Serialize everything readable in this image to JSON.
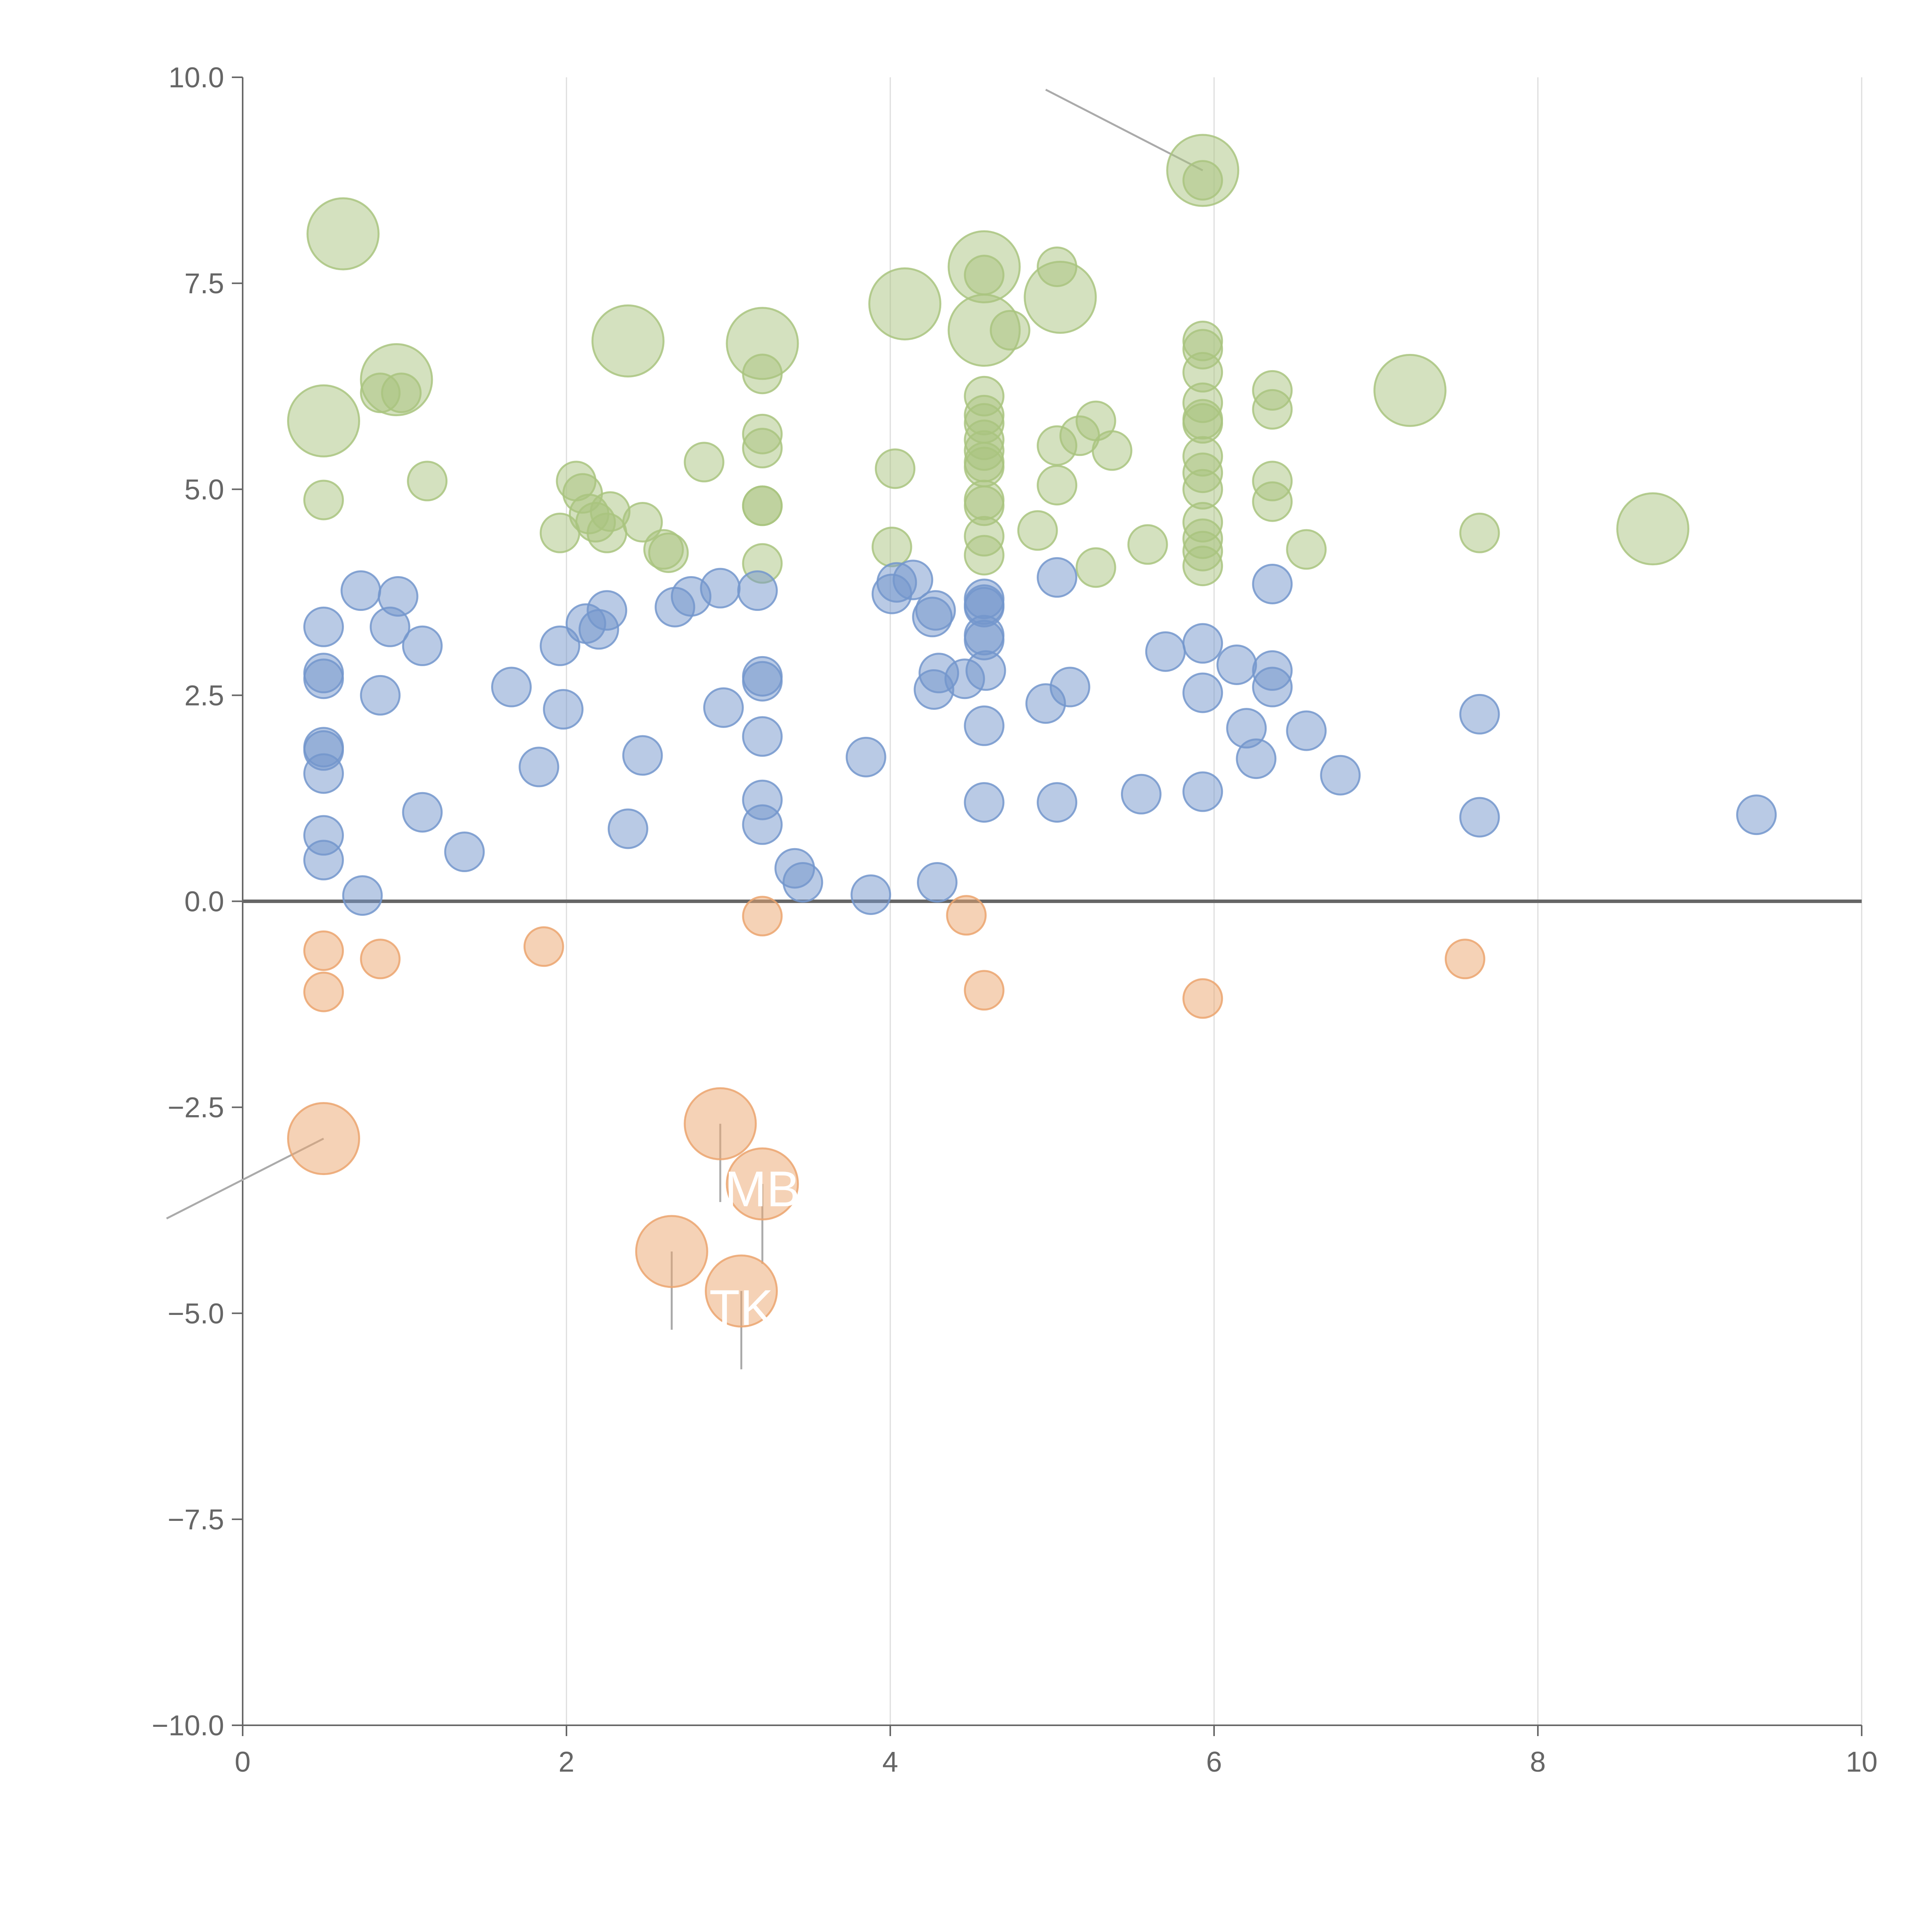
{
  "chart_data": {
    "type": "scatter",
    "title": "",
    "xlabel": "",
    "ylabel": "",
    "xlim": [
      0,
      10
    ],
    "ylim": [
      -10,
      10
    ],
    "x_ticks": [
      "0",
      "2",
      "4",
      "6",
      "8",
      "10"
    ],
    "y_ticks": [
      "−10.0",
      "−7.5",
      "−5.0",
      "−2.5",
      "0.0",
      "2.5",
      "5.0",
      "7.5",
      "10.0"
    ],
    "x_tick_values": [
      0,
      2,
      4,
      6,
      8,
      10
    ],
    "y_tick_values": [
      -10,
      -7.5,
      -5,
      -2.5,
      0,
      2.5,
      5,
      7.5,
      10
    ],
    "vertical_gridlines": true,
    "horizontal_gridlines": false,
    "zero_line": true,
    "bubble_size_legend": "none",
    "colors": {
      "high": "#a9c47f",
      "mid": "#7396cc",
      "negative": "#eba56e",
      "axis": "#666666",
      "grid": "#dddddd",
      "leader": "#aaaaaa"
    },
    "series": [
      {
        "color_key": "high",
        "points": [
          {
            "x": 5.93,
            "y": 8.87,
            "size": 2.4
          },
          {
            "x": 5.93,
            "y": 8.75,
            "size": 1
          },
          {
            "x": 0.62,
            "y": 8.1,
            "size": 2.4
          },
          {
            "x": 4.58,
            "y": 7.7,
            "size": 2.4
          },
          {
            "x": 4.58,
            "y": 7.6,
            "size": 1
          },
          {
            "x": 5.03,
            "y": 7.7,
            "size": 1
          },
          {
            "x": 4.09,
            "y": 7.25,
            "size": 2.4
          },
          {
            "x": 5.05,
            "y": 7.33,
            "size": 2.4
          },
          {
            "x": 4.58,
            "y": 6.93,
            "size": 2.4
          },
          {
            "x": 4.74,
            "y": 6.93,
            "size": 1
          },
          {
            "x": 2.38,
            "y": 6.8,
            "size": 2.4
          },
          {
            "x": 3.21,
            "y": 6.77,
            "size": 2.4
          },
          {
            "x": 5.93,
            "y": 6.8,
            "size": 1
          },
          {
            "x": 5.93,
            "y": 6.7,
            "size": 1
          },
          {
            "x": 3.21,
            "y": 6.4,
            "size": 1
          },
          {
            "x": 5.93,
            "y": 6.42,
            "size": 1
          },
          {
            "x": 0.95,
            "y": 6.33,
            "size": 2.4
          },
          {
            "x": 0.85,
            "y": 6.17,
            "size": 1
          },
          {
            "x": 0.98,
            "y": 6.17,
            "size": 1
          },
          {
            "x": 7.21,
            "y": 6.2,
            "size": 2.4
          },
          {
            "x": 6.36,
            "y": 6.2,
            "size": 1
          },
          {
            "x": 4.58,
            "y": 6.13,
            "size": 1
          },
          {
            "x": 5.93,
            "y": 6.05,
            "size": 1
          },
          {
            "x": 6.36,
            "y": 5.97,
            "size": 1
          },
          {
            "x": 4.58,
            "y": 5.9,
            "size": 1
          },
          {
            "x": 4.58,
            "y": 5.8,
            "size": 1
          },
          {
            "x": 0.5,
            "y": 5.83,
            "size": 2.4
          },
          {
            "x": 5.27,
            "y": 5.83,
            "size": 1
          },
          {
            "x": 5.93,
            "y": 5.85,
            "size": 1
          },
          {
            "x": 5.93,
            "y": 5.8,
            "size": 1
          },
          {
            "x": 3.21,
            "y": 5.67,
            "size": 1
          },
          {
            "x": 4.58,
            "y": 5.6,
            "size": 1
          },
          {
            "x": 5.17,
            "y": 5.65,
            "size": 1
          },
          {
            "x": 5.03,
            "y": 5.53,
            "size": 1
          },
          {
            "x": 3.21,
            "y": 5.5,
            "size": 1
          },
          {
            "x": 4.58,
            "y": 5.47,
            "size": 1
          },
          {
            "x": 5.37,
            "y": 5.47,
            "size": 1
          },
          {
            "x": 5.93,
            "y": 5.4,
            "size": 1
          },
          {
            "x": 2.85,
            "y": 5.33,
            "size": 1
          },
          {
            "x": 4.58,
            "y": 5.33,
            "size": 1
          },
          {
            "x": 4.58,
            "y": 5.27,
            "size": 1
          },
          {
            "x": 4.03,
            "y": 5.25,
            "size": 1
          },
          {
            "x": 5.93,
            "y": 5.2,
            "size": 1
          },
          {
            "x": 1.14,
            "y": 5.1,
            "size": 1
          },
          {
            "x": 2.06,
            "y": 5.1,
            "size": 1
          },
          {
            "x": 6.36,
            "y": 5.1,
            "size": 1
          },
          {
            "x": 5.03,
            "y": 5.05,
            "size": 1
          },
          {
            "x": 5.93,
            "y": 5.0,
            "size": 1
          },
          {
            "x": 2.1,
            "y": 4.95,
            "size": 1
          },
          {
            "x": 0.5,
            "y": 4.87,
            "size": 1
          },
          {
            "x": 4.58,
            "y": 4.87,
            "size": 1
          },
          {
            "x": 6.36,
            "y": 4.85,
            "size": 1
          },
          {
            "x": 3.21,
            "y": 4.8,
            "size": 1
          },
          {
            "x": 3.21,
            "y": 4.8,
            "size": 1
          },
          {
            "x": 4.58,
            "y": 4.8,
            "size": 1
          },
          {
            "x": 2.27,
            "y": 4.73,
            "size": 1
          },
          {
            "x": 2.14,
            "y": 4.7,
            "size": 1
          },
          {
            "x": 2.18,
            "y": 4.6,
            "size": 1
          },
          {
            "x": 2.47,
            "y": 4.6,
            "size": 1
          },
          {
            "x": 5.93,
            "y": 4.6,
            "size": 1
          },
          {
            "x": 8.71,
            "y": 4.52,
            "size": 2.4
          },
          {
            "x": 1.96,
            "y": 4.47,
            "size": 1
          },
          {
            "x": 2.25,
            "y": 4.47,
            "size": 1
          },
          {
            "x": 4.91,
            "y": 4.5,
            "size": 1
          },
          {
            "x": 7.64,
            "y": 4.47,
            "size": 1
          },
          {
            "x": 4.58,
            "y": 4.43,
            "size": 1
          },
          {
            "x": 5.93,
            "y": 4.4,
            "size": 1
          },
          {
            "x": 5.59,
            "y": 4.33,
            "size": 1
          },
          {
            "x": 4.01,
            "y": 4.3,
            "size": 1
          },
          {
            "x": 2.6,
            "y": 4.27,
            "size": 1
          },
          {
            "x": 6.57,
            "y": 4.27,
            "size": 1
          },
          {
            "x": 2.63,
            "y": 4.23,
            "size": 1
          },
          {
            "x": 4.58,
            "y": 4.2,
            "size": 1
          },
          {
            "x": 5.93,
            "y": 4.25,
            "size": 1
          },
          {
            "x": 3.21,
            "y": 4.1,
            "size": 1
          },
          {
            "x": 5.27,
            "y": 4.05,
            "size": 1
          },
          {
            "x": 5.93,
            "y": 4.07,
            "size": 1
          }
        ]
      },
      {
        "color_key": "mid",
        "points": [
          {
            "x": 0.5,
            "y": 3.33,
            "size": 1
          },
          {
            "x": 0.73,
            "y": 3.77,
            "size": 1
          },
          {
            "x": 0.96,
            "y": 3.7,
            "size": 1
          },
          {
            "x": 0.91,
            "y": 3.33,
            "size": 1
          },
          {
            "x": 1.11,
            "y": 3.1,
            "size": 1
          },
          {
            "x": 0.5,
            "y": 2.77,
            "size": 1
          },
          {
            "x": 0.5,
            "y": 2.7,
            "size": 1
          },
          {
            "x": 0.85,
            "y": 2.5,
            "size": 1
          },
          {
            "x": 1.66,
            "y": 2.6,
            "size": 1
          },
          {
            "x": 1.96,
            "y": 3.1,
            "size": 1
          },
          {
            "x": 2.12,
            "y": 3.37,
            "size": 1
          },
          {
            "x": 2.2,
            "y": 3.3,
            "size": 1
          },
          {
            "x": 2.25,
            "y": 3.53,
            "size": 1
          },
          {
            "x": 2.67,
            "y": 3.57,
            "size": 1
          },
          {
            "x": 2.77,
            "y": 3.7,
            "size": 1
          },
          {
            "x": 2.95,
            "y": 3.8,
            "size": 1
          },
          {
            "x": 3.18,
            "y": 3.77,
            "size": 1
          },
          {
            "x": 3.21,
            "y": 2.73,
            "size": 1
          },
          {
            "x": 3.21,
            "y": 2.67,
            "size": 1
          },
          {
            "x": 2.97,
            "y": 2.35,
            "size": 1
          },
          {
            "x": 1.98,
            "y": 2.33,
            "size": 1
          },
          {
            "x": 0.5,
            "y": 1.87,
            "size": 1
          },
          {
            "x": 0.5,
            "y": 1.83,
            "size": 1
          },
          {
            "x": 0.5,
            "y": 1.55,
            "size": 1
          },
          {
            "x": 1.83,
            "y": 1.63,
            "size": 1
          },
          {
            "x": 2.47,
            "y": 1.77,
            "size": 1
          },
          {
            "x": 3.21,
            "y": 2.0,
            "size": 1
          },
          {
            "x": 1.11,
            "y": 1.08,
            "size": 1
          },
          {
            "x": 0.5,
            "y": 0.8,
            "size": 1
          },
          {
            "x": 1.37,
            "y": 0.6,
            "size": 1
          },
          {
            "x": 2.38,
            "y": 0.88,
            "size": 1
          },
          {
            "x": 3.21,
            "y": 1.23,
            "size": 1
          },
          {
            "x": 3.21,
            "y": 0.93,
            "size": 1
          },
          {
            "x": 0.5,
            "y": 0.5,
            "size": 1
          },
          {
            "x": 0.74,
            "y": 0.07,
            "size": 1
          },
          {
            "x": 3.41,
            "y": 0.4,
            "size": 1
          },
          {
            "x": 3.46,
            "y": 0.23,
            "size": 1
          },
          {
            "x": 3.85,
            "y": 1.75,
            "size": 1
          },
          {
            "x": 3.88,
            "y": 0.08,
            "size": 1
          },
          {
            "x": 4.01,
            "y": 3.73,
            "size": 1
          },
          {
            "x": 4.04,
            "y": 3.87,
            "size": 1
          },
          {
            "x": 4.14,
            "y": 3.9,
            "size": 1
          },
          {
            "x": 4.28,
            "y": 3.53,
            "size": 1
          },
          {
            "x": 4.26,
            "y": 3.45,
            "size": 1
          },
          {
            "x": 4.3,
            "y": 2.77,
            "size": 1
          },
          {
            "x": 4.27,
            "y": 2.57,
            "size": 1
          },
          {
            "x": 4.46,
            "y": 2.7,
            "size": 1
          },
          {
            "x": 4.58,
            "y": 3.67,
            "size": 1
          },
          {
            "x": 4.58,
            "y": 3.6,
            "size": 1
          },
          {
            "x": 4.58,
            "y": 3.57,
            "size": 1
          },
          {
            "x": 4.58,
            "y": 3.23,
            "size": 1
          },
          {
            "x": 4.58,
            "y": 3.17,
            "size": 1
          },
          {
            "x": 4.59,
            "y": 2.8,
            "size": 1
          },
          {
            "x": 4.58,
            "y": 2.13,
            "size": 1
          },
          {
            "x": 4.58,
            "y": 1.2,
            "size": 1
          },
          {
            "x": 4.29,
            "y": 0.23,
            "size": 1
          },
          {
            "x": 5.03,
            "y": 3.93,
            "size": 1
          },
          {
            "x": 4.96,
            "y": 2.4,
            "size": 1
          },
          {
            "x": 5.11,
            "y": 2.6,
            "size": 1
          },
          {
            "x": 5.03,
            "y": 1.2,
            "size": 1
          },
          {
            "x": 5.55,
            "y": 1.3,
            "size": 1
          },
          {
            "x": 5.7,
            "y": 3.03,
            "size": 1
          },
          {
            "x": 5.93,
            "y": 3.13,
            "size": 1
          },
          {
            "x": 5.93,
            "y": 2.53,
            "size": 1
          },
          {
            "x": 5.93,
            "y": 1.33,
            "size": 1
          },
          {
            "x": 6.14,
            "y": 2.87,
            "size": 1
          },
          {
            "x": 6.2,
            "y": 2.1,
            "size": 1
          },
          {
            "x": 6.26,
            "y": 1.73,
            "size": 1
          },
          {
            "x": 6.36,
            "y": 3.85,
            "size": 1
          },
          {
            "x": 6.36,
            "y": 2.8,
            "size": 1
          },
          {
            "x": 6.36,
            "y": 2.6,
            "size": 1
          },
          {
            "x": 6.57,
            "y": 2.07,
            "size": 1
          },
          {
            "x": 6.78,
            "y": 1.53,
            "size": 1
          },
          {
            "x": 7.64,
            "y": 2.27,
            "size": 1
          },
          {
            "x": 7.64,
            "y": 1.02,
            "size": 1
          },
          {
            "x": 9.35,
            "y": 1.05,
            "size": 1
          }
        ]
      },
      {
        "color_key": "negative",
        "points": [
          {
            "x": 0.5,
            "y": -0.6,
            "size": 1
          },
          {
            "x": 0.5,
            "y": -1.1,
            "size": 1
          },
          {
            "x": 0.85,
            "y": -0.7,
            "size": 1
          },
          {
            "x": 1.86,
            "y": -0.55,
            "size": 1
          },
          {
            "x": 3.21,
            "y": -0.18,
            "size": 1
          },
          {
            "x": 4.47,
            "y": -0.17,
            "size": 1
          },
          {
            "x": 4.58,
            "y": -1.08,
            "size": 1
          },
          {
            "x": 5.93,
            "y": -1.18,
            "size": 1
          },
          {
            "x": 7.55,
            "y": -0.7,
            "size": 1
          },
          {
            "x": 0.5,
            "y": -2.88,
            "size": 2.4
          },
          {
            "x": 2.95,
            "y": -2.7,
            "size": 2.4
          },
          {
            "x": 3.21,
            "y": -3.43,
            "size": 2.4
          },
          {
            "x": 2.65,
            "y": -4.25,
            "size": 2.4
          },
          {
            "x": 3.08,
            "y": -4.73,
            "size": 2.4
          }
        ]
      }
    ],
    "annotations": [
      {
        "text": "MB",
        "x": 3.21,
        "y": -3.43,
        "label_x": 3.21,
        "label_y": -3.49
      },
      {
        "text": "TK",
        "x": 3.08,
        "y": -4.73,
        "label_x": 3.08,
        "label_y": -4.93
      }
    ],
    "leader_lines": [
      {
        "x1": 5.93,
        "y1": 8.87,
        "x2": 4.96,
        "y2": 9.85
      },
      {
        "x1": 0.5,
        "y1": -2.88,
        "x2": -0.47,
        "y2": -3.85
      },
      {
        "x1": 2.95,
        "y1": -2.7,
        "x2": 2.95,
        "y2": -3.65
      },
      {
        "x1": 3.21,
        "y1": -3.43,
        "x2": 3.21,
        "y2": -4.4
      },
      {
        "x1": 2.65,
        "y1": -4.25,
        "x2": 2.65,
        "y2": -5.2
      },
      {
        "x1": 3.08,
        "y1": -4.73,
        "x2": 3.08,
        "y2": -5.68
      }
    ]
  }
}
